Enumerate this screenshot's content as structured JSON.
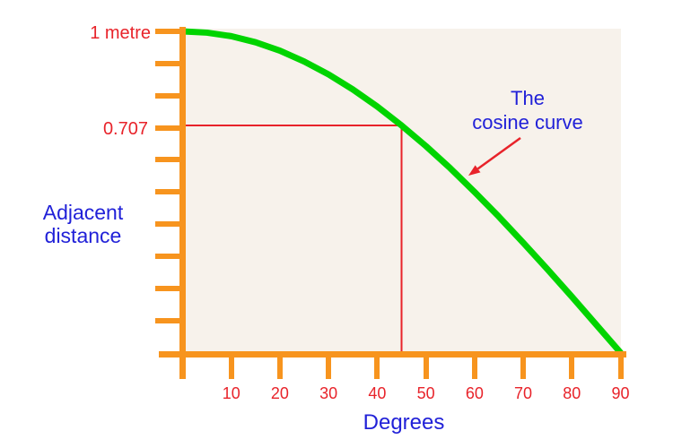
{
  "page_background": "#FFFFFF",
  "colors": {
    "axis": "#F7941E",
    "curve": "#00D400",
    "reference": "#E8232A",
    "tick_label_text": "#E8232A",
    "axis_label_text": "#2121D8",
    "plot_background": "#F7F2EB"
  },
  "labels": {
    "y_max": "1 metre",
    "y_ref": "0.707",
    "y_axis": "Adjacent\ndistance",
    "x_axis": "Degrees",
    "curve_annotation": "The\ncosine curve"
  },
  "chart_data": {
    "type": "line",
    "title": "",
    "xlabel": "Degrees",
    "ylabel": "Adjacent distance",
    "xlim": [
      0,
      90
    ],
    "ylim": [
      0,
      1
    ],
    "x_ticks": [
      10,
      20,
      30,
      40,
      50,
      60,
      70,
      80,
      90
    ],
    "y_tick_step": 0.1,
    "y_tick_labels_shown": [
      "1 metre",
      "0.707"
    ],
    "grid": false,
    "legend": false,
    "series": [
      {
        "name": "The cosine curve",
        "x": [
          0,
          5,
          10,
          15,
          20,
          25,
          30,
          35,
          40,
          45,
          50,
          55,
          60,
          65,
          70,
          75,
          80,
          85,
          90
        ],
        "y": [
          1.0,
          0.996,
          0.985,
          0.966,
          0.94,
          0.906,
          0.866,
          0.819,
          0.766,
          0.707,
          0.643,
          0.574,
          0.5,
          0.423,
          0.342,
          0.259,
          0.174,
          0.087,
          0.0
        ]
      }
    ],
    "reference_point": {
      "x": 45,
      "y": 0.707
    },
    "annotation": {
      "text": "The cosine curve",
      "points_to": {
        "x": 58,
        "y": 0.55
      }
    }
  }
}
